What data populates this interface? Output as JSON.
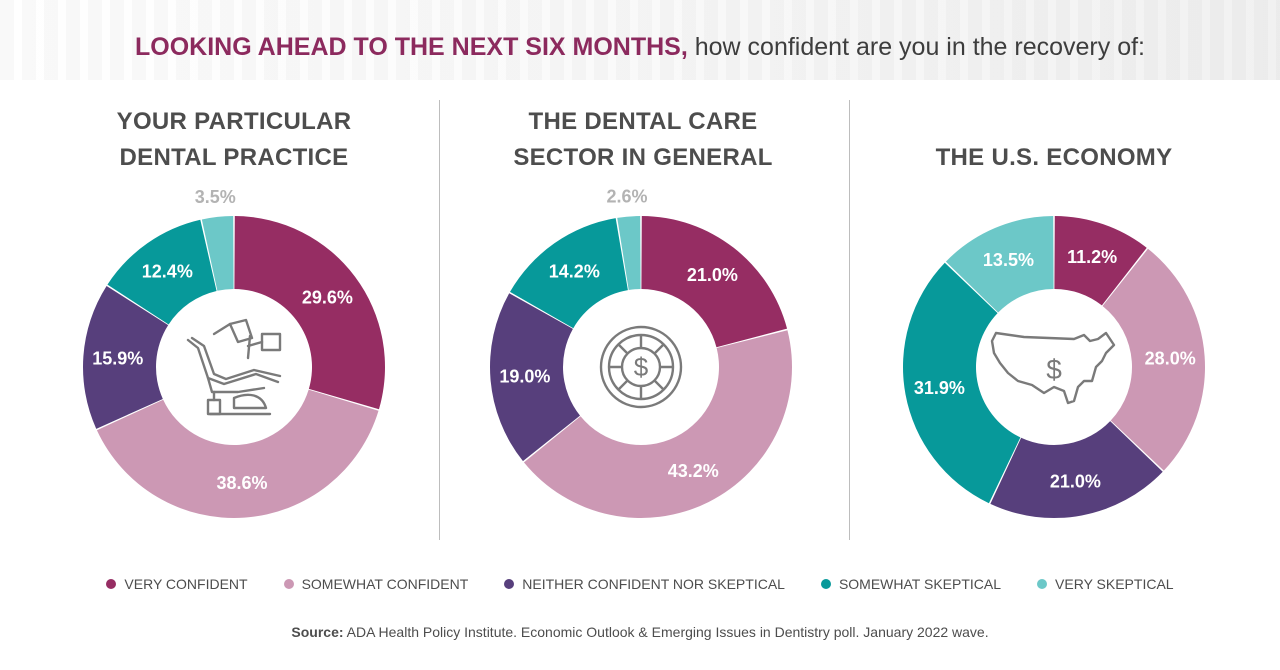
{
  "header": {
    "title_accent": "LOOKING AHEAD TO THE NEXT SIX MONTHS,",
    "title_rest": " how confident are you in the recovery of:"
  },
  "colors": {
    "very_confident": "#962d63",
    "somewhat_confident": "#cc98b4",
    "neither": "#573f7c",
    "somewhat_skeptical": "#07999a",
    "very_skeptical": "#6cc8c8",
    "outside_label": "#b3b3b3",
    "icon": "#7a7a7a"
  },
  "chart_data": [
    {
      "type": "pie",
      "title": "YOUR PARTICULAR DENTAL PRACTICE",
      "title_lines": [
        "YOUR PARTICULAR",
        "DENTAL PRACTICE"
      ],
      "icon": "dental-chair-icon",
      "values": [
        29.6,
        38.6,
        15.9,
        12.4,
        3.5
      ],
      "labels": [
        "29.6%",
        "38.6%",
        "15.9%",
        "12.4%",
        "3.5%"
      ]
    },
    {
      "type": "pie",
      "title": "THE DENTAL CARE SECTOR IN GENERAL",
      "title_lines": [
        "THE DENTAL CARE",
        "SECTOR IN GENERAL"
      ],
      "icon": "dollar-coin-icon",
      "values": [
        21.0,
        43.2,
        19.0,
        14.2,
        2.6
      ],
      "labels": [
        "21.0%",
        "43.2%",
        "19.0%",
        "14.2%",
        "2.6%"
      ]
    },
    {
      "type": "pie",
      "title": "THE U.S. ECONOMY",
      "title_lines": [
        "THE U.S. ECONOMY"
      ],
      "icon": "us-map-dollar-icon",
      "values": [
        11.2,
        28.0,
        21.0,
        31.9,
        13.5
      ],
      "labels": [
        "11.2%",
        "28.0%",
        "21.0%",
        "31.9%",
        "13.5%"
      ]
    }
  ],
  "legend": {
    "items": [
      {
        "label": "VERY CONFIDENT",
        "color": "#962d63"
      },
      {
        "label": "SOMEWHAT CONFIDENT",
        "color": "#cc98b4"
      },
      {
        "label": "NEITHER CONFIDENT NOR SKEPTICAL",
        "color": "#573f7c"
      },
      {
        "label": "SOMEWHAT SKEPTICAL",
        "color": "#07999a"
      },
      {
        "label": "VERY SKEPTICAL",
        "color": "#6cc8c8"
      }
    ]
  },
  "source": {
    "label": "Source:",
    "text": " ADA Health Policy Institute. Economic Outlook & Emerging Issues in Dentistry poll. January 2022 wave."
  }
}
